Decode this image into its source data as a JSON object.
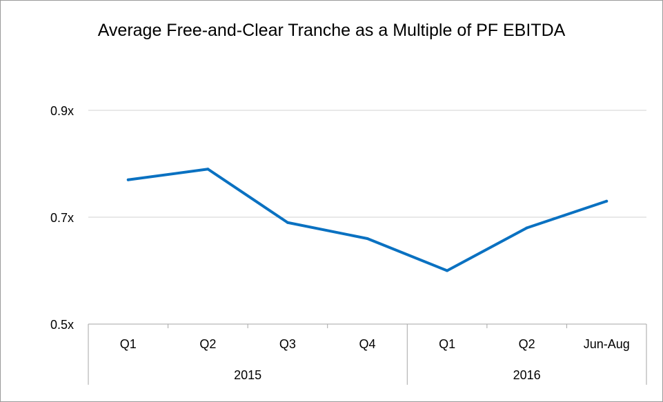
{
  "chart_data": {
    "type": "line",
    "title": "Average Free-and-Clear Tranche as a Multiple of PF EBITDA",
    "xlabel": "",
    "ylabel": "",
    "ylim": [
      0.5,
      0.9
    ],
    "y_ticks": [
      "0.5x",
      "0.7x",
      "0.9x"
    ],
    "y_tick_values": [
      0.5,
      0.7,
      0.9
    ],
    "grid": true,
    "categories": [
      "Q1",
      "Q2",
      "Q3",
      "Q4",
      "Q1",
      "Q2",
      "Jun-Aug"
    ],
    "groups": [
      {
        "label": "2015",
        "count": 4
      },
      {
        "label": "2016",
        "count": 3
      }
    ],
    "series": [
      {
        "values": [
          0.77,
          0.79,
          0.69,
          0.66,
          0.6,
          0.68,
          0.73
        ],
        "color": "#0a71c1"
      }
    ]
  }
}
